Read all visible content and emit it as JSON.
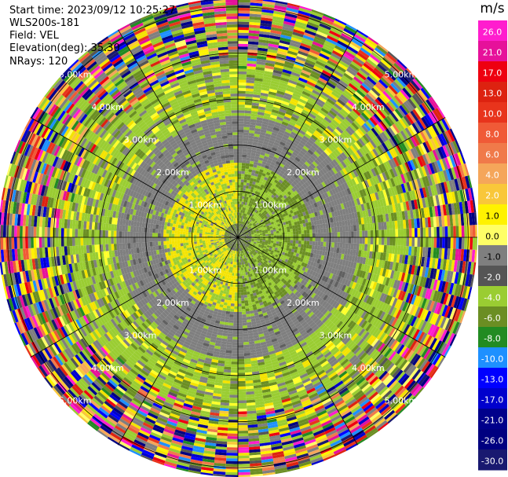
{
  "header": {
    "start_time": "Start time: 2023/09/12 10:25:27",
    "instrument": "WLS200s-181",
    "field": "Field: VEL",
    "elevation": "Elevation(deg): 35.30",
    "nrays": "NRays: 120"
  },
  "chart_data": {
    "type": "heatmap",
    "projection": "polar PPI",
    "field": "VEL",
    "unit": "m/s",
    "n_rays": 120,
    "max_range_km": 5.2,
    "range_rings_km": [
      1.0,
      2.0,
      3.0,
      4.0,
      5.0
    ],
    "range_ring_labels": [
      "1.00km",
      "2.00km",
      "3.00km",
      "4.00km",
      "5.00km"
    ],
    "spoke_step_deg": 30,
    "colorbar": {
      "title": "m/s",
      "tick_labels": [
        "26.0",
        "21.0",
        "17.0",
        "13.0",
        "10.0",
        "8.0",
        "6.0",
        "4.0",
        "2.0",
        "1.0",
        "0.0",
        "-1.0",
        "-2.0",
        "-4.0",
        "-6.0",
        "-8.0",
        "-10.0",
        "-13.0",
        "-17.0",
        "-21.0",
        "-26.0",
        "-30.0"
      ],
      "colors": [
        "#ff1dce",
        "#e6119a",
        "#ee0010",
        "#dd2210",
        "#e8341c",
        "#f05a37",
        "#f07a4a",
        "#f5a65a",
        "#f9c73a",
        "#fff200",
        "#ffff66",
        "#7f7f7f",
        "#555555",
        "#9acd32",
        "#6b8e23",
        "#228b22",
        "#1e90ff",
        "#0000ff",
        "#0000cd",
        "#00008b",
        "#000080",
        "#191970"
      ]
    },
    "velocity_zones": [
      {
        "range_km": [
          0.0,
          0.3
        ],
        "description": "near-zero core",
        "value": 0.0
      },
      {
        "range_km": [
          0.3,
          1.6
        ],
        "description": "inner ring",
        "value": 2.0
      },
      {
        "range_km": [
          1.6,
          2.6
        ],
        "description": "middle ring",
        "value": 0.0
      },
      {
        "range_km": [
          2.6,
          3.6
        ],
        "description": "outer ring",
        "value": -2.0
      },
      {
        "range_km": [
          3.6,
          5.2
        ],
        "description": "noisy far range",
        "value": null
      }
    ]
  }
}
